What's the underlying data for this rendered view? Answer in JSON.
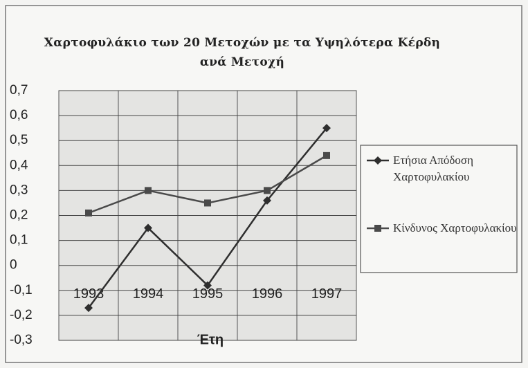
{
  "chart_data": {
    "type": "line",
    "title": "Χαρτοφυλάκιο των 20 Μετοχών με τα Υψηλότερα Κέρδη ανά Μετοχή",
    "x_label": "Έτη",
    "categories": [
      "1993",
      "1994",
      "1995",
      "1996",
      "1997"
    ],
    "series": [
      {
        "name": "Ετήσια Απόδοση Χαρτοφυλακίου",
        "color": "#2e2e2e",
        "marker": "diamond",
        "values": [
          -0.17,
          0.15,
          -0.08,
          0.26,
          0.55
        ]
      },
      {
        "name": "Κίνδυνος Χαρτοφυλακίου",
        "color": "#4a4a4a",
        "marker": "square",
        "values": [
          0.21,
          0.3,
          0.25,
          0.3,
          0.44
        ]
      }
    ],
    "ylim": [
      -0.3,
      0.7
    ],
    "yticks": [
      {
        "value": 0.7,
        "label": "0,7"
      },
      {
        "value": 0.6,
        "label": "0,6"
      },
      {
        "value": 0.5,
        "label": "0,5"
      },
      {
        "value": 0.4,
        "label": "0,4"
      },
      {
        "value": 0.3,
        "label": "0,3"
      },
      {
        "value": 0.2,
        "label": "0,2"
      },
      {
        "value": 0.1,
        "label": "0,1"
      },
      0,
      {
        "value": -0.1,
        "label": "-0,1"
      },
      {
        "value": -0.2,
        "label": "-0,2"
      },
      {
        "value": -0.3,
        "label": "-0,3"
      }
    ],
    "grid": true,
    "legend": "right"
  }
}
